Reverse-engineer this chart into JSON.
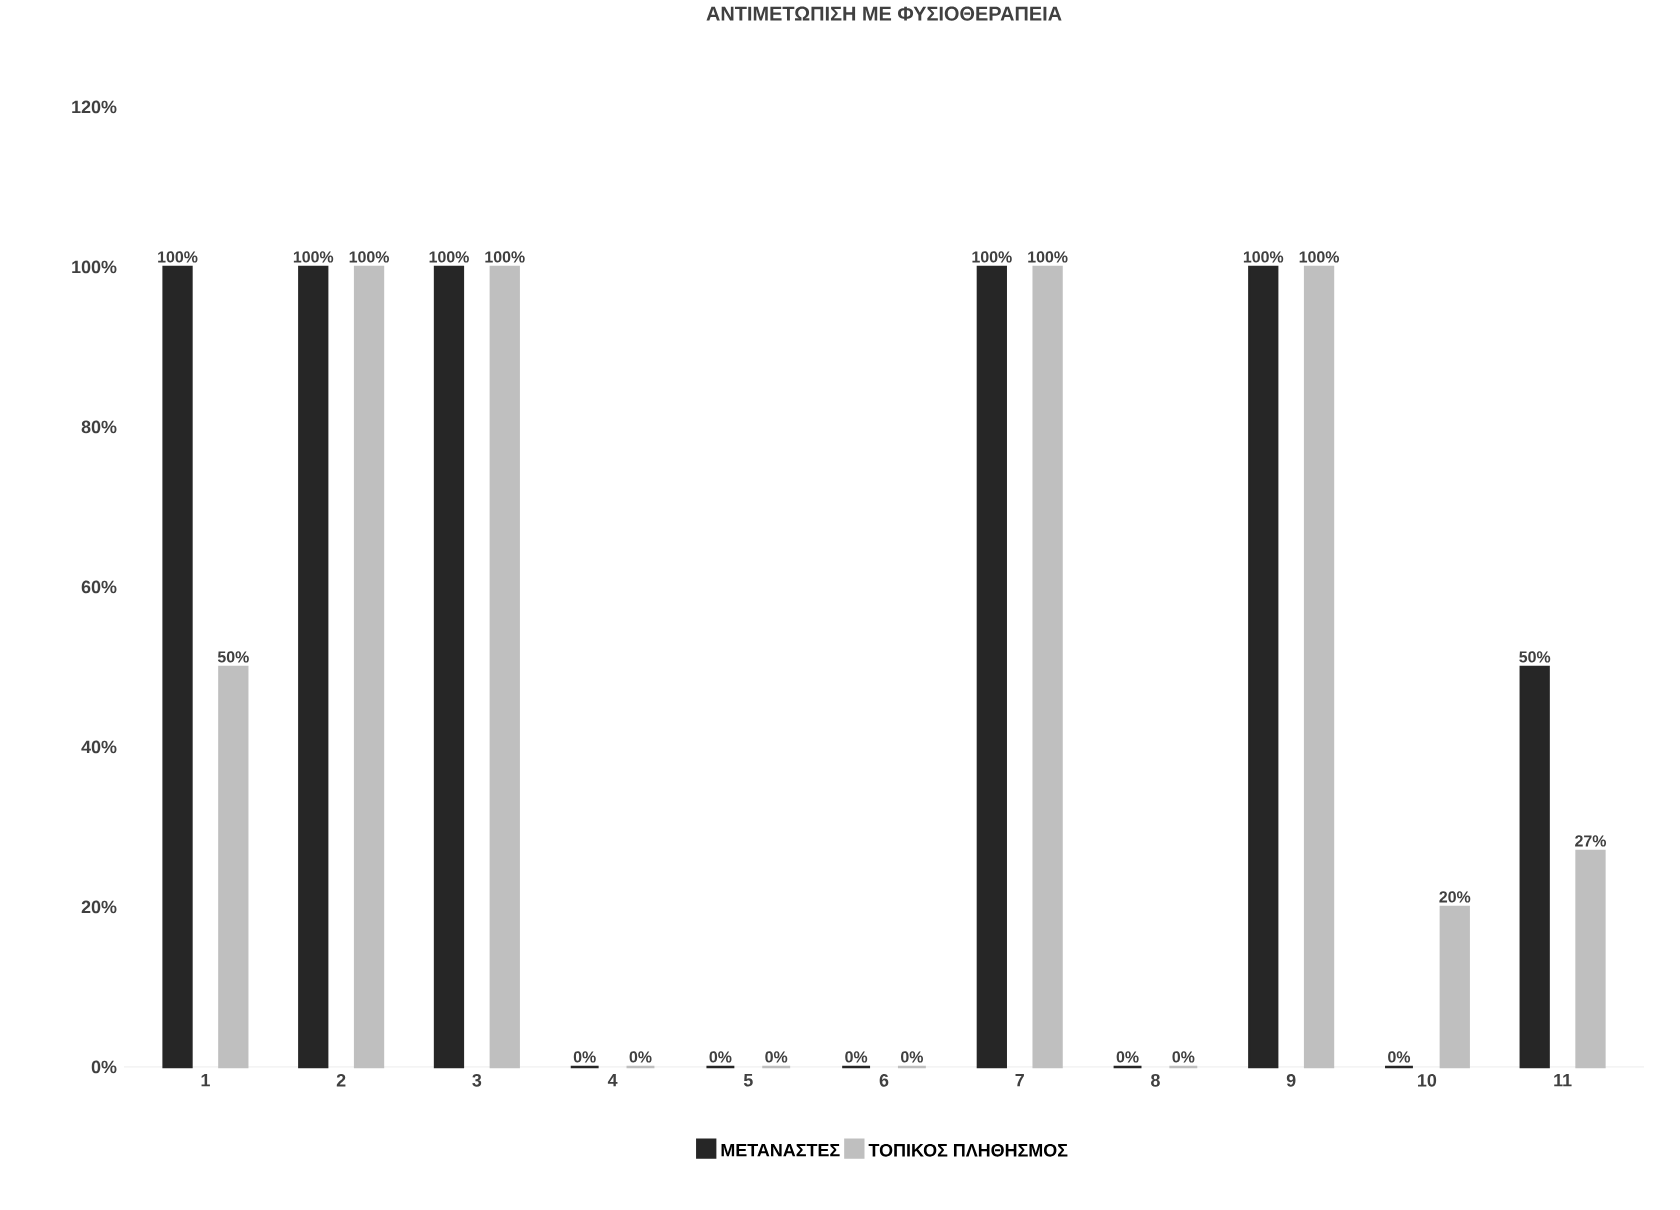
{
  "chart_data": {
    "type": "bar",
    "title": "ΑΝΤΙΜΕΤΩΠΙΣΗ ΜΕ ΦΥΣΙΟΘΕΡΑΠΕΙΑ",
    "categories": [
      "1",
      "2",
      "3",
      "4",
      "5",
      "6",
      "7",
      "8",
      "9",
      "10",
      "11"
    ],
    "series": [
      {
        "name": "ΜΕΤΑΝΑΣΤΕΣ",
        "color": "#262626",
        "values": [
          100,
          100,
          100,
          0,
          0,
          0,
          100,
          0,
          100,
          0,
          50
        ],
        "value_labels": [
          "100%",
          "100%",
          "100%",
          "0%",
          "0%",
          "0%",
          "100%",
          "0%",
          "100%",
          "0%",
          "50%"
        ]
      },
      {
        "name": "ΤΟΠΙΚΟΣ ΠΛΗΘΗΣΜΟΣ",
        "color": "#bfbfbf",
        "values": [
          50,
          100,
          100,
          0,
          0,
          0,
          100,
          0,
          100,
          20,
          27
        ],
        "value_labels": [
          "50%",
          "100%",
          "100%",
          "0%",
          "0%",
          "0%",
          "100%",
          "0%",
          "100%",
          "20%",
          "27%"
        ]
      }
    ],
    "ylim": [
      0,
      120
    ],
    "yticks": [
      {
        "value": 0,
        "label": "0%"
      },
      {
        "value": 20,
        "label": "20%"
      },
      {
        "value": 40,
        "label": "40%"
      },
      {
        "value": 60,
        "label": "60%"
      },
      {
        "value": 80,
        "label": "80%"
      },
      {
        "value": 100,
        "label": "100%"
      },
      {
        "value": 120,
        "label": "120%"
      }
    ],
    "legend": "bottom"
  }
}
